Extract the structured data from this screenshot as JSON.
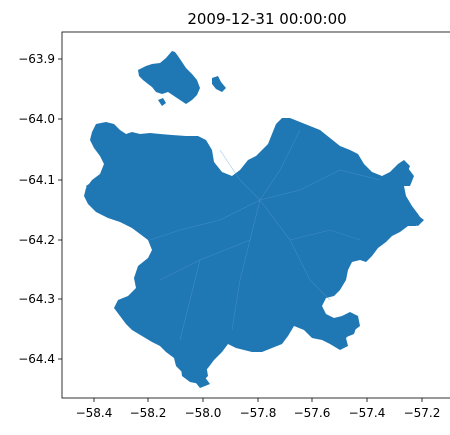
{
  "map": {
    "title": "2009-12-31 00:00:00",
    "fill_color": "#1f77b4",
    "x_ticks": [
      "−58.4",
      "−58.2",
      "−58.0",
      "−57.8",
      "−57.6",
      "−57.4",
      "−57.2"
    ],
    "y_ticks": [
      "−63.9",
      "−64.0",
      "−64.1",
      "−64.2",
      "−64.3",
      "−64.4"
    ]
  }
}
